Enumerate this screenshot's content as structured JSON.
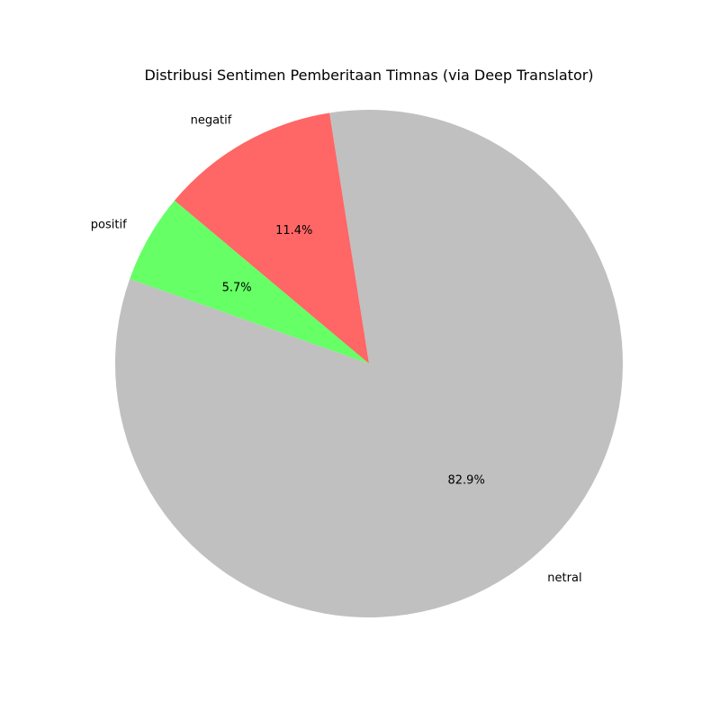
{
  "chart_data": {
    "type": "pie",
    "title": "Distribusi Sentimen Pemberitaan Timnas (via Deep Translator)",
    "start_angle_deg": 140,
    "direction": "counterclockwise",
    "slices": [
      {
        "label": "positif",
        "value": 5.7,
        "pct_text": "5.7%",
        "color": "#66ff66"
      },
      {
        "label": "netral",
        "value": 82.9,
        "pct_text": "82.9%",
        "color": "#c0c0c0"
      },
      {
        "label": "negatif",
        "value": 11.4,
        "pct_text": "11.4%",
        "color": "#ff6666"
      }
    ]
  }
}
